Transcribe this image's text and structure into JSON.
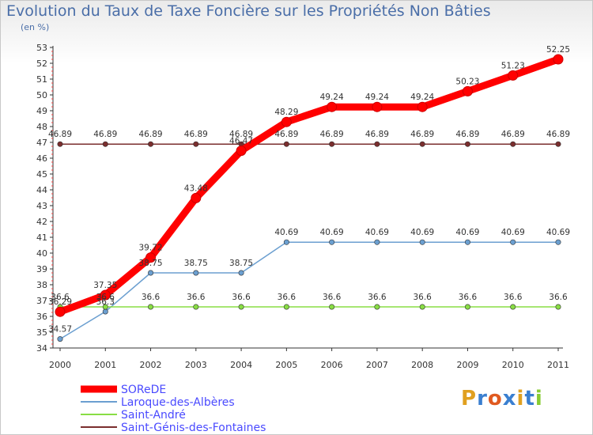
{
  "chart_data": {
    "type": "line",
    "title": "Evolution du Taux de Taxe Foncière sur les Propriétés Non Bâties",
    "subtitle": "(en %)",
    "x": [
      "2000",
      "2001",
      "2002",
      "2003",
      "2004",
      "2005",
      "2006",
      "2007",
      "2008",
      "2009",
      "2010",
      "2011"
    ],
    "ylim": [
      34,
      53
    ],
    "yticks": [
      34,
      35,
      36,
      37,
      38,
      39,
      40,
      41,
      42,
      43,
      44,
      45,
      46,
      47,
      48,
      49,
      50,
      51,
      52,
      53
    ],
    "series": [
      {
        "name": "SOReDE",
        "color": "#ff0000",
        "bold": true,
        "values": [
          36.29,
          37.35,
          39.72,
          43.48,
          46.47,
          48.29,
          49.24,
          49.24,
          49.24,
          50.23,
          51.23,
          52.25
        ],
        "labels": [
          "36.29",
          "37.35",
          "39.72",
          "43.48",
          "46.47",
          "48.29",
          "49.24",
          "49.24",
          "49.24",
          "50.23",
          "51.23",
          "52.25"
        ]
      },
      {
        "name": "Laroque-des-Albères",
        "color": "#6b9fd0",
        "values": [
          34.57,
          36.3,
          38.75,
          38.75,
          38.75,
          40.69,
          40.69,
          40.69,
          40.69,
          40.69,
          40.69,
          40.69
        ],
        "labels": [
          "34.57",
          "36.3",
          "38.75",
          "38.75",
          "38.75",
          "40.69",
          "40.69",
          "40.69",
          "40.69",
          "40.69",
          "40.69",
          "40.69"
        ]
      },
      {
        "name": "Saint-André",
        "color": "#88dd44",
        "values": [
          36.6,
          36.6,
          36.6,
          36.6,
          36.6,
          36.6,
          36.6,
          36.6,
          36.6,
          36.6,
          36.6,
          36.6
        ],
        "labels": [
          "36.6",
          "36.6",
          "36.6",
          "36.6",
          "36.6",
          "36.6",
          "36.6",
          "36.6",
          "36.6",
          "36.6",
          "36.6",
          "36.6"
        ]
      },
      {
        "name": "Saint-Génis-des-Fontaines",
        "color": "#7a2e2e",
        "values": [
          46.89,
          46.89,
          46.89,
          46.89,
          46.89,
          46.89,
          46.89,
          46.89,
          46.89,
          46.89,
          46.89,
          46.89
        ],
        "labels": [
          "46.89",
          "46.89",
          "46.89",
          "46.89",
          "46.89",
          "46.89",
          "46.89",
          "46.89",
          "46.89",
          "46.89",
          "46.89",
          "46.89"
        ]
      }
    ],
    "legend": "bottom-left",
    "grid": false
  },
  "brand": {
    "text": "Proxiti",
    "letters": [
      "P",
      "r",
      "o",
      "x",
      "i",
      "t",
      "i"
    ],
    "colors": [
      "#e0a020",
      "#3a7fd0",
      "#e05a20",
      "#3a7fd0",
      "#e0a020",
      "#3a7fd0",
      "#88cc33"
    ]
  }
}
